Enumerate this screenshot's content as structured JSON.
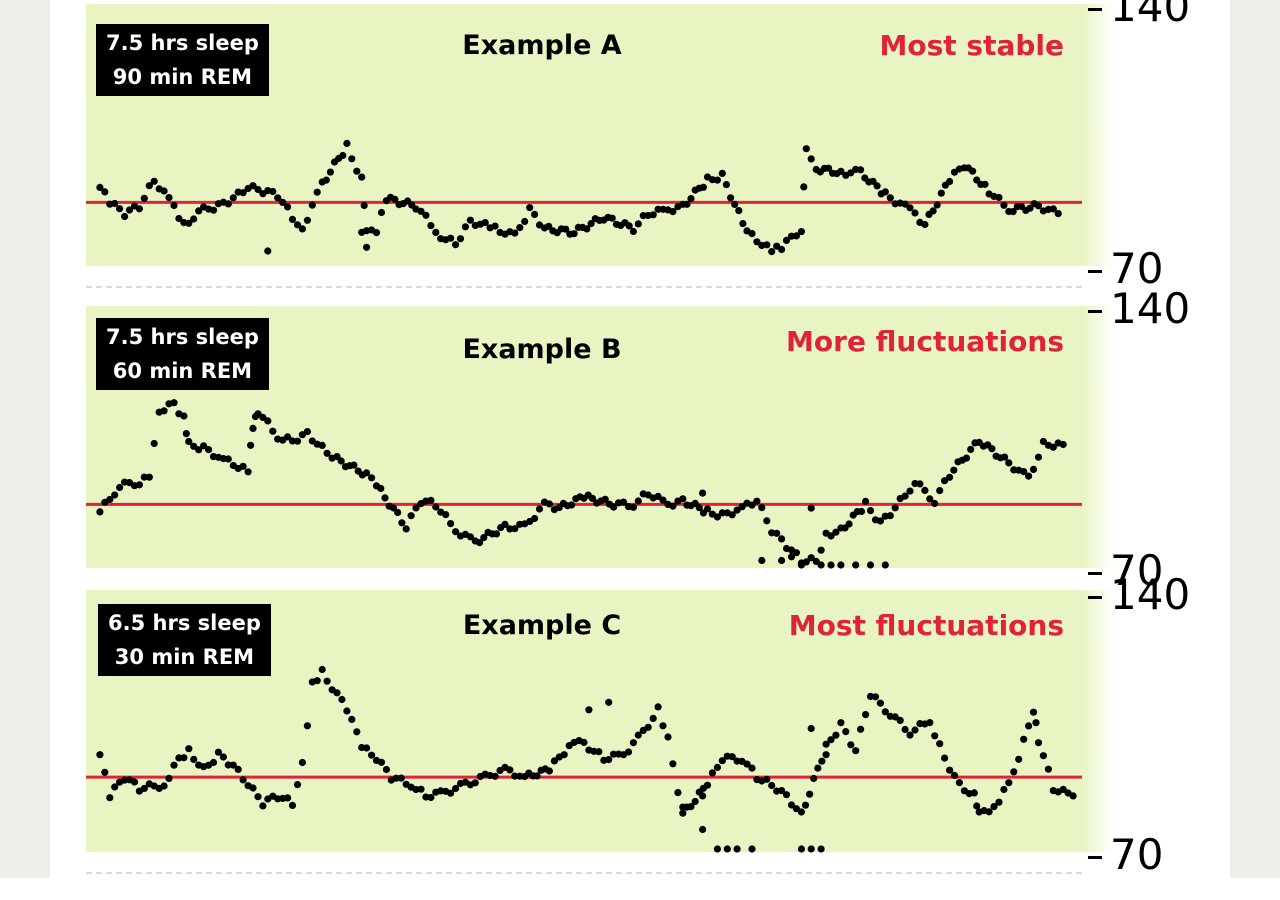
{
  "chart_data": [
    {
      "type": "scatter",
      "title": "Example A",
      "annotation": "Most stable",
      "info": [
        "7.5 hrs sleep",
        "90 min REM"
      ],
      "yticks": [
        140,
        70
      ],
      "ylim": [
        70,
        140
      ],
      "xlim": [
        0,
        1
      ],
      "baseline": 87,
      "colors": {
        "points": "#000000",
        "baseline": "#e0233a",
        "background": "#e8f5c2"
      },
      "anchors": [
        [
          0.01,
          91
        ],
        [
          0.02,
          87
        ],
        [
          0.035,
          84
        ],
        [
          0.05,
          86
        ],
        [
          0.065,
          93
        ],
        [
          0.085,
          86
        ],
        [
          0.095,
          81
        ],
        [
          0.115,
          85
        ],
        [
          0.13,
          86
        ],
        [
          0.145,
          88
        ],
        [
          0.16,
          91
        ],
        [
          0.175,
          90
        ],
        [
          0.19,
          89
        ],
        [
          0.205,
          83
        ],
        [
          0.215,
          80
        ],
        [
          0.235,
          92
        ],
        [
          0.26,
          102
        ],
        [
          0.275,
          93
        ],
        [
          0.28,
          79
        ],
        [
          0.29,
          79
        ],
        [
          0.3,
          88
        ],
        [
          0.33,
          86
        ],
        [
          0.355,
          78
        ],
        [
          0.37,
          76
        ],
        [
          0.385,
          82
        ],
        [
          0.41,
          80
        ],
        [
          0.43,
          78
        ],
        [
          0.445,
          85
        ],
        [
          0.46,
          80
        ],
        [
          0.49,
          79
        ],
        [
          0.52,
          83
        ],
        [
          0.55,
          80
        ],
        [
          0.565,
          84
        ],
        [
          0.585,
          85
        ],
        [
          0.6,
          86
        ],
        [
          0.625,
          93
        ],
        [
          0.64,
          94
        ],
        [
          0.665,
          79
        ],
        [
          0.69,
          74
        ],
        [
          0.7,
          75
        ],
        [
          0.72,
          80
        ],
        [
          0.725,
          102
        ],
        [
          0.735,
          96
        ],
        [
          0.76,
          95
        ],
        [
          0.78,
          95
        ],
        [
          0.805,
          89
        ],
        [
          0.83,
          85
        ],
        [
          0.845,
          81
        ],
        [
          0.87,
          93
        ],
        [
          0.885,
          97
        ],
        [
          0.91,
          90
        ],
        [
          0.93,
          85
        ],
        [
          0.96,
          86
        ],
        [
          0.98,
          84
        ]
      ],
      "extra_points": [
        [
          0.275,
          79
        ],
        [
          0.28,
          75
        ],
        [
          0.18,
          74
        ]
      ]
    },
    {
      "type": "scatter",
      "title": "Example B",
      "annotation": "More fluctuations",
      "info": [
        "7.5 hrs sleep",
        "60 min REM"
      ],
      "yticks": [
        140,
        70
      ],
      "ylim": [
        70,
        140
      ],
      "xlim": [
        0,
        1
      ],
      "baseline": 87,
      "colors": {
        "points": "#000000",
        "baseline": "#e0233a",
        "background": "#e8f5c2"
      },
      "anchors": [
        [
          0.01,
          85
        ],
        [
          0.03,
          92
        ],
        [
          0.05,
          93
        ],
        [
          0.06,
          95
        ],
        [
          0.07,
          112
        ],
        [
          0.085,
          114
        ],
        [
          0.095,
          110
        ],
        [
          0.1,
          103
        ],
        [
          0.115,
          102
        ],
        [
          0.135,
          99
        ],
        [
          0.16,
          96
        ],
        [
          0.165,
          108
        ],
        [
          0.17,
          112
        ],
        [
          0.19,
          105
        ],
        [
          0.205,
          104
        ],
        [
          0.22,
          106
        ],
        [
          0.235,
          102
        ],
        [
          0.25,
          99
        ],
        [
          0.28,
          95
        ],
        [
          0.29,
          92
        ],
        [
          0.32,
          81
        ],
        [
          0.335,
          88
        ],
        [
          0.35,
          87
        ],
        [
          0.37,
          80
        ],
        [
          0.39,
          77
        ],
        [
          0.42,
          81
        ],
        [
          0.44,
          81
        ],
        [
          0.46,
          87
        ],
        [
          0.475,
          86
        ],
        [
          0.5,
          89
        ],
        [
          0.53,
          87
        ],
        [
          0.55,
          87
        ],
        [
          0.565,
          90
        ],
        [
          0.585,
          87
        ],
        [
          0.6,
          88
        ],
        [
          0.625,
          85
        ],
        [
          0.64,
          84
        ],
        [
          0.66,
          86
        ],
        [
          0.675,
          88
        ],
        [
          0.69,
          80
        ],
        [
          0.705,
          76
        ],
        [
          0.72,
          72
        ],
        [
          0.735,
          72
        ],
        [
          0.745,
          79
        ],
        [
          0.76,
          80
        ],
        [
          0.785,
          87
        ],
        [
          0.8,
          82
        ],
        [
          0.815,
          86
        ],
        [
          0.835,
          93
        ],
        [
          0.855,
          88
        ],
        [
          0.87,
          95
        ],
        [
          0.9,
          104
        ],
        [
          0.93,
          98
        ],
        [
          0.95,
          94
        ],
        [
          0.965,
          103
        ],
        [
          0.985,
          103
        ]
      ],
      "extra_points": [
        [
          0.68,
          72
        ],
        [
          0.7,
          72
        ],
        [
          0.71,
          73
        ],
        [
          0.72,
          70
        ],
        [
          0.74,
          70
        ],
        [
          0.75,
          70
        ],
        [
          0.76,
          70
        ],
        [
          0.775,
          70
        ],
        [
          0.79,
          70
        ],
        [
          0.805,
          70
        ],
        [
          0.73,
          86
        ],
        [
          0.62,
          90
        ]
      ]
    },
    {
      "type": "scatter",
      "title": "Example C",
      "annotation": "Most fluctuations",
      "info": [
        "6.5 hrs sleep",
        "30 min REM"
      ],
      "yticks": [
        140,
        70
      ],
      "ylim": [
        70,
        140
      ],
      "xlim": [
        0,
        1
      ],
      "baseline": 90,
      "colors": {
        "points": "#000000",
        "baseline": "#e0233a",
        "background": "#e8f5c2"
      },
      "anchors": [
        [
          0.01,
          96
        ],
        [
          0.02,
          85
        ],
        [
          0.035,
          90
        ],
        [
          0.05,
          87
        ],
        [
          0.075,
          88
        ],
        [
          0.09,
          95
        ],
        [
          0.1,
          97
        ],
        [
          0.115,
          92
        ],
        [
          0.13,
          96
        ],
        [
          0.145,
          93
        ],
        [
          0.16,
          88
        ],
        [
          0.175,
          83
        ],
        [
          0.19,
          85
        ],
        [
          0.205,
          83
        ],
        [
          0.215,
          94
        ],
        [
          0.225,
          115
        ],
        [
          0.235,
          118
        ],
        [
          0.255,
          110
        ],
        [
          0.265,
          105
        ],
        [
          0.275,
          98
        ],
        [
          0.29,
          95
        ],
        [
          0.305,
          90
        ],
        [
          0.325,
          88
        ],
        [
          0.34,
          85
        ],
        [
          0.36,
          86
        ],
        [
          0.38,
          88
        ],
        [
          0.4,
          90
        ],
        [
          0.42,
          92
        ],
        [
          0.44,
          90
        ],
        [
          0.465,
          92
        ],
        [
          0.49,
          100
        ],
        [
          0.505,
          98
        ],
        [
          0.52,
          95
        ],
        [
          0.54,
          96
        ],
        [
          0.56,
          102
        ],
        [
          0.575,
          108
        ],
        [
          0.585,
          100
        ],
        [
          0.6,
          80
        ],
        [
          0.625,
          88
        ],
        [
          0.64,
          95
        ],
        [
          0.66,
          95
        ],
        [
          0.675,
          90
        ],
        [
          0.69,
          88
        ],
        [
          0.705,
          85
        ],
        [
          0.72,
          80
        ],
        [
          0.745,
          98
        ],
        [
          0.76,
          104
        ],
        [
          0.775,
          97
        ],
        [
          0.79,
          112
        ],
        [
          0.81,
          107
        ],
        [
          0.83,
          102
        ],
        [
          0.85,
          105
        ],
        [
          0.865,
          95
        ],
        [
          0.88,
          88
        ],
        [
          0.895,
          85
        ],
        [
          0.9,
          80
        ],
        [
          0.92,
          83
        ],
        [
          0.94,
          95
        ],
        [
          0.955,
          108
        ],
        [
          0.96,
          100
        ],
        [
          0.975,
          87
        ],
        [
          0.995,
          85
        ]
      ],
      "extra_points": [
        [
          0.6,
          82
        ],
        [
          0.62,
          85
        ],
        [
          0.635,
          70
        ],
        [
          0.645,
          70
        ],
        [
          0.655,
          70
        ],
        [
          0.67,
          70
        ],
        [
          0.72,
          70
        ],
        [
          0.73,
          70
        ],
        [
          0.74,
          70
        ],
        [
          0.73,
          103
        ],
        [
          0.745,
          96
        ],
        [
          0.62,
          76
        ],
        [
          0.505,
          108
        ],
        [
          0.525,
          110
        ]
      ]
    }
  ]
}
